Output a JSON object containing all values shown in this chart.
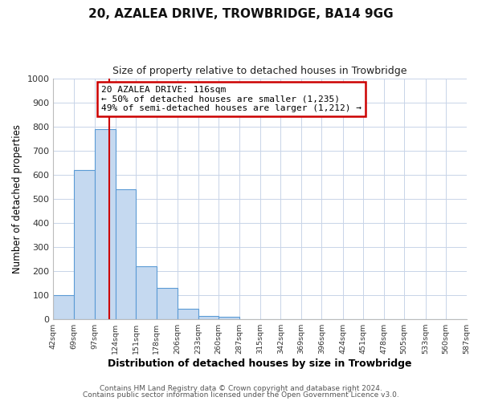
{
  "title": "20, AZALEA DRIVE, TROWBRIDGE, BA14 9GG",
  "subtitle": "Size of property relative to detached houses in Trowbridge",
  "xlabel": "Distribution of detached houses by size in Trowbridge",
  "ylabel": "Number of detached properties",
  "bar_edges": [
    42,
    69,
    97,
    124,
    151,
    178,
    206,
    233,
    260,
    287,
    315,
    342,
    369,
    396,
    424,
    451,
    478,
    505,
    533,
    560,
    587
  ],
  "bar_heights": [
    100,
    620,
    790,
    540,
    220,
    130,
    42,
    15,
    10,
    0,
    0,
    0,
    0,
    0,
    0,
    0,
    0,
    0,
    0,
    0
  ],
  "bar_color": "#c5d9f0",
  "bar_edge_color": "#5b9bd5",
  "property_line_x": 116,
  "property_line_color": "#cc0000",
  "annotation_text": "20 AZALEA DRIVE: 116sqm\n← 50% of detached houses are smaller (1,235)\n49% of semi-detached houses are larger (1,212) →",
  "annotation_box_edgecolor": "#cc0000",
  "ylim": [
    0,
    1000
  ],
  "yticks": [
    0,
    100,
    200,
    300,
    400,
    500,
    600,
    700,
    800,
    900,
    1000
  ],
  "tick_labels": [
    "42sqm",
    "69sqm",
    "97sqm",
    "124sqm",
    "151sqm",
    "178sqm",
    "206sqm",
    "233sqm",
    "260sqm",
    "287sqm",
    "315sqm",
    "342sqm",
    "369sqm",
    "396sqm",
    "424sqm",
    "451sqm",
    "478sqm",
    "505sqm",
    "533sqm",
    "560sqm",
    "587sqm"
  ],
  "footer_line1": "Contains HM Land Registry data © Crown copyright and database right 2024.",
  "footer_line2": "Contains public sector information licensed under the Open Government Licence v3.0.",
  "background_color": "#ffffff",
  "grid_color": "#c8d4e8",
  "title_fontsize": 11,
  "subtitle_fontsize": 9,
  "ylabel_fontsize": 8.5,
  "xlabel_fontsize": 9,
  "ytick_fontsize": 8,
  "xtick_fontsize": 6.8,
  "annotation_fontsize": 8,
  "footer_fontsize": 6.5
}
